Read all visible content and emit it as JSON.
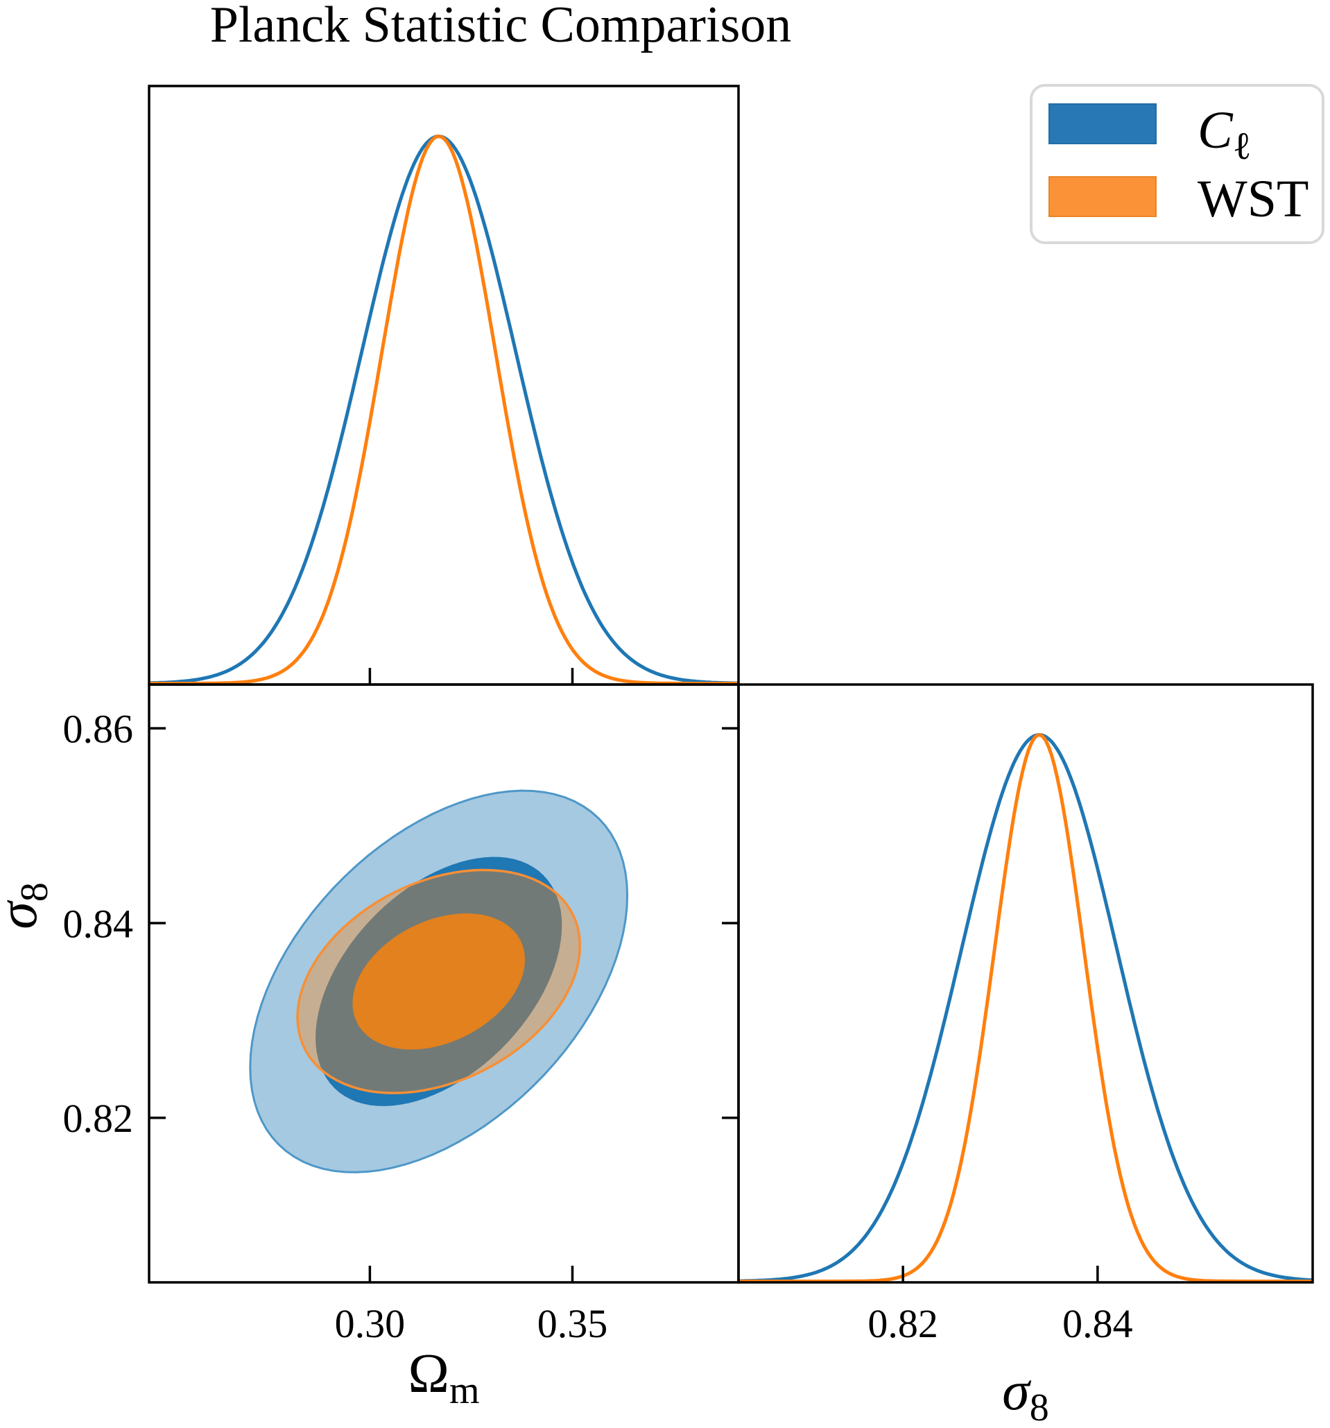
{
  "title": "Planck Statistic Comparison",
  "colors": {
    "c0": "#1f77b4",
    "c1": "#ff7f0e",
    "blue_outer_fill_alpha": 0.4,
    "orange_outer_fill_alpha": 0.37,
    "blue_inner": "#1f77b4",
    "orange_inner": "#e2811e",
    "blue_edge": "#4e97c8",
    "orange_edge": "#f78f35",
    "spine": "#000000",
    "legend_border": "#d9d9d9",
    "legend_background": "#ffffff",
    "legend_swatch_blue": "#2878b5",
    "legend_swatch_orange": "#fc9237",
    "legend_swatch_blue_edge": "#1f6da6",
    "legend_swatch_orange_edge": "#ea8326"
  },
  "legend": {
    "items": [
      {
        "name": "cl",
        "label_main": "C",
        "label_sub": "ℓ",
        "italic": true,
        "swatch_color": "#2878b5",
        "swatch_edge": "#1f6da6"
      },
      {
        "name": "wst",
        "label_main": "WST",
        "label_sub": "",
        "italic": false,
        "swatch_color": "#fc9237",
        "swatch_edge": "#ea8326"
      }
    ]
  },
  "chart_data": {
    "type": "corner_plot",
    "title": "Planck Statistic Comparison",
    "legend_position": "upper right",
    "grid": false,
    "axes": {
      "omega_m": {
        "label_main": "Ω",
        "label_sub": "m",
        "label_italic": false,
        "range": [
          0.2455,
          0.391
        ],
        "ticks": [
          {
            "v": 0.3,
            "label": "0.30"
          },
          {
            "v": 0.35,
            "label": "0.35"
          }
        ]
      },
      "sigma_8": {
        "label_main": "σ",
        "label_sub": "8",
        "label_italic": true,
        "range_joint_y": [
          0.8031,
          0.8645
        ],
        "range_marginal_x": [
          0.8031,
          0.8621
        ],
        "ticks_joint_y": [
          {
            "v": 0.86,
            "label": "0.86"
          },
          {
            "v": 0.84,
            "label": "0.84"
          },
          {
            "v": 0.82,
            "label": "0.82"
          }
        ],
        "ticks_marginal_x": [
          {
            "v": 0.82,
            "label": "0.82"
          },
          {
            "v": 0.84,
            "label": "0.84"
          }
        ]
      }
    },
    "series": [
      {
        "name": "Cl",
        "display_main": "C",
        "display_sub": "ℓ",
        "color": "#1f77b4",
        "omega_m_mean": 0.317,
        "omega_m_sigma": 0.019,
        "sigma_8_mean": 0.834,
        "sigma_8_sigma": 0.008,
        "correlation": 0.45,
        "contour_k": [
          1.6,
          2.45
        ],
        "contour_levels": [
          "1sigma",
          "2sigma"
        ]
      },
      {
        "name": "WST",
        "display_main": "WST",
        "display_sub": "",
        "color": "#ff7f0e",
        "omega_m_mean": 0.317,
        "omega_m_sigma": 0.014,
        "sigma_8_mean": 0.834,
        "sigma_8_sigma": 0.0046,
        "correlation": 0.32,
        "contour_k": [
          1.52,
          2.49
        ],
        "contour_levels": [
          "1sigma",
          "2sigma"
        ]
      }
    ]
  }
}
